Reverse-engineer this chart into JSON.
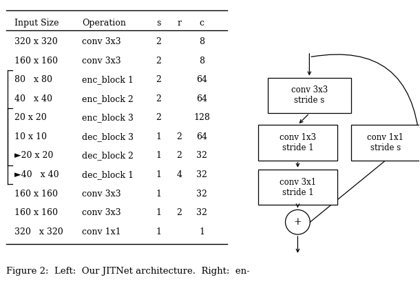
{
  "table_headers": [
    "Input Size",
    "Operation",
    "s",
    "r",
    "c"
  ],
  "table_rows": [
    [
      "320 x 320",
      "conv 3x3",
      "2",
      "",
      "8"
    ],
    [
      "160 x 160",
      "conv 3x3",
      "2",
      "",
      "8"
    ],
    [
      "80   x 80",
      "enc_block 1",
      "2",
      "",
      "64"
    ],
    [
      "40   x 40",
      "enc_block 2",
      "2",
      "",
      "64"
    ],
    [
      "20 x 20",
      "enc_block 3",
      "2",
      "",
      "128"
    ],
    [
      "10 x 10",
      "dec_block 3",
      "1",
      "2",
      "64"
    ],
    [
      "►20 x 20",
      "dec_block 2",
      "1",
      "2",
      "32"
    ],
    [
      "►40   x 40",
      "dec_block 1",
      "1",
      "4",
      "32"
    ],
    [
      "160 x 160",
      "conv 3x3",
      "1",
      "",
      "32"
    ],
    [
      "160 x 160",
      "conv 3x3",
      "1",
      "2",
      "32"
    ],
    [
      "320   x 320",
      "conv 1x1",
      "1",
      "",
      "1"
    ]
  ],
  "bracket_rows": [
    [
      2,
      7
    ],
    [
      4,
      6
    ]
  ],
  "caption": "Figure 2:  Left:  Our JITNet architecture.  Right:  en-",
  "bg_color": "#ffffff",
  "text_color": "#000000",
  "font_size": 9.0
}
